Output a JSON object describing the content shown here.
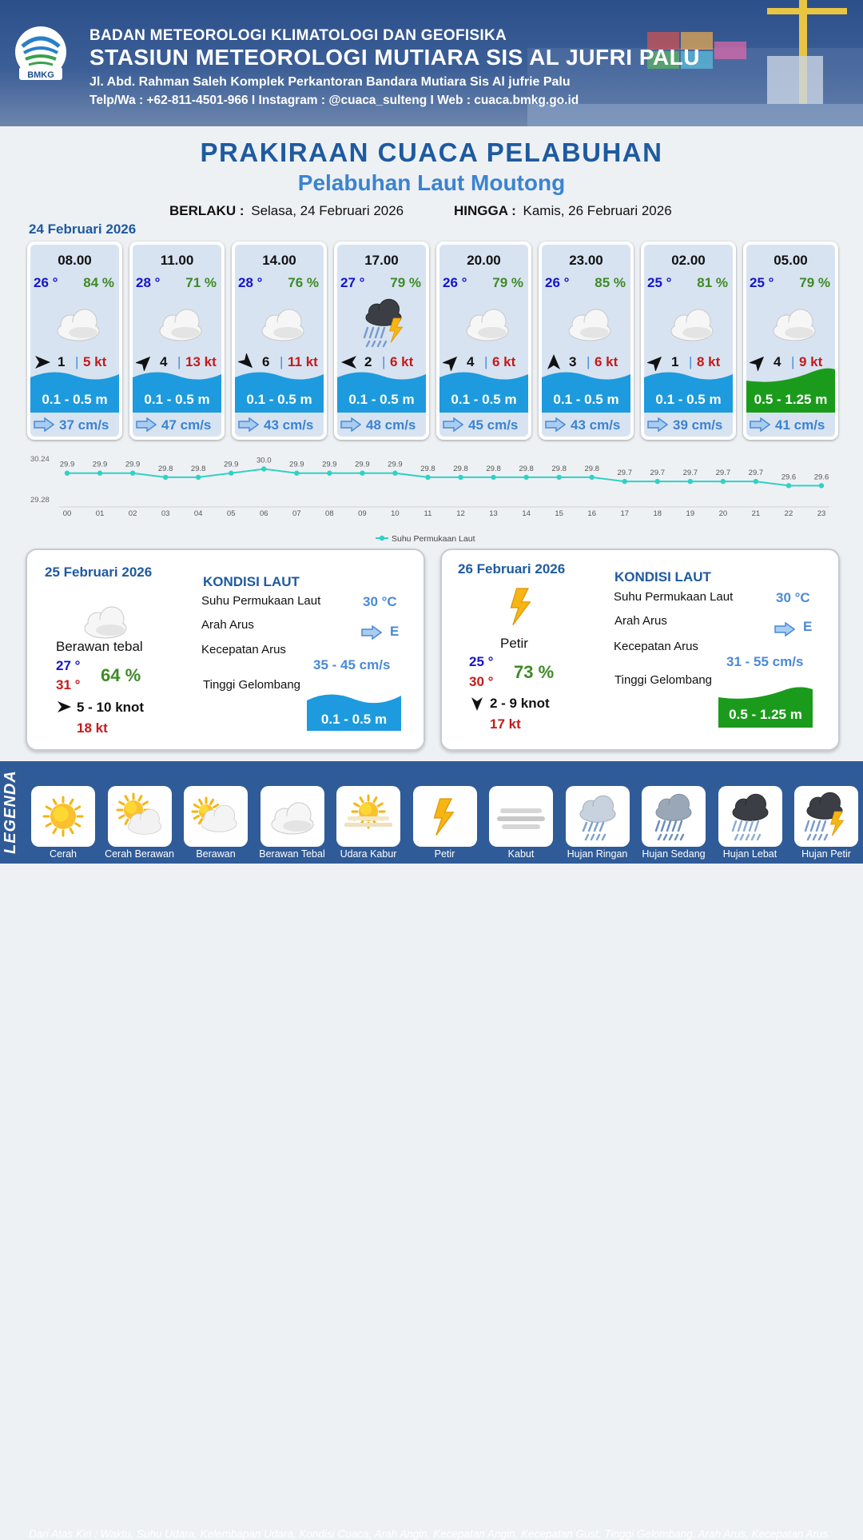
{
  "header": {
    "agency": "BADAN METEOROLOGI KLIMATOLOGI DAN GEOFISIKA",
    "station": "STASIUN METEOROLOGI MUTIARA SIS AL JUFRI PALU",
    "address": "Jl. Abd. Rahman Saleh Komplek Perkantoran Bandara Mutiara Sis Al jufrie Palu",
    "contact": "Telp/Wa : +62-811-4501-966  I  Instagram : @cuaca_sulteng  I  Web : cuaca.bmkg.go.id",
    "logo_text": "BMKG"
  },
  "title": "PRAKIRAAN CUACA PELABUHAN",
  "subtitle": "Pelabuhan Laut Moutong",
  "validity": {
    "from_label": "BERLAKU :",
    "from_value": "Selasa, 24 Februari 2026",
    "to_label": "HINGGA :",
    "to_value": "Kamis, 26 Februari 2026"
  },
  "day1": {
    "date": "24 Februari 2026",
    "slots": [
      {
        "time": "08.00",
        "temp": "26 °",
        "humidity": "84 %",
        "weather": "berawan-tebal",
        "wind_dir_deg": 90,
        "wind_speed": "1",
        "gust": "5 kt",
        "wave": "0.1 - 0.5 m",
        "wave_level": "low",
        "current_dir": "E",
        "current": "37 cm/s"
      },
      {
        "time": "11.00",
        "temp": "28 °",
        "humidity": "71 %",
        "weather": "berawan-tebal",
        "wind_dir_deg": 45,
        "wind_speed": "4",
        "gust": "13 kt",
        "wave": "0.1 - 0.5 m",
        "wave_level": "low",
        "current_dir": "E",
        "current": "47 cm/s"
      },
      {
        "time": "14.00",
        "temp": "28 °",
        "humidity": "76 %",
        "weather": "berawan-tebal",
        "wind_dir_deg": 135,
        "wind_speed": "6",
        "gust": "11 kt",
        "wave": "0.1 - 0.5 m",
        "wave_level": "low",
        "current_dir": "E",
        "current": "43 cm/s"
      },
      {
        "time": "17.00",
        "temp": "27 °",
        "humidity": "79 %",
        "weather": "hujan-petir",
        "wind_dir_deg": 270,
        "wind_speed": "2",
        "gust": "6 kt",
        "wave": "0.1 - 0.5 m",
        "wave_level": "low",
        "current_dir": "E",
        "current": "48 cm/s"
      },
      {
        "time": "20.00",
        "temp": "26 °",
        "humidity": "79 %",
        "weather": "berawan-tebal",
        "wind_dir_deg": 45,
        "wind_speed": "4",
        "gust": "6 kt",
        "wave": "0.1 - 0.5 m",
        "wave_level": "low",
        "current_dir": "E",
        "current": "45 cm/s"
      },
      {
        "time": "23.00",
        "temp": "26 °",
        "humidity": "85 %",
        "weather": "berawan-tebal",
        "wind_dir_deg": 0,
        "wind_speed": "3",
        "gust": "6 kt",
        "wave": "0.1 - 0.5 m",
        "wave_level": "low",
        "current_dir": "E",
        "current": "43 cm/s"
      },
      {
        "time": "02.00",
        "temp": "25 °",
        "humidity": "81 %",
        "weather": "berawan-tebal",
        "wind_dir_deg": 45,
        "wind_speed": "1",
        "gust": "8 kt",
        "wave": "0.1 - 0.5 m",
        "wave_level": "low",
        "current_dir": "E",
        "current": "39 cm/s"
      },
      {
        "time": "05.00",
        "temp": "25 °",
        "humidity": "79 %",
        "weather": "berawan-tebal",
        "wind_dir_deg": 45,
        "wind_speed": "4",
        "gust": "9 kt",
        "wave": "0.5 - 1.25 m",
        "wave_level": "moderate",
        "current_dir": "E",
        "current": "41 cm/s"
      }
    ]
  },
  "chart_data": {
    "type": "line",
    "title": "",
    "xlabel": "",
    "ylabel": "",
    "x": [
      "00",
      "01",
      "02",
      "03",
      "04",
      "05",
      "06",
      "07",
      "08",
      "09",
      "10",
      "11",
      "12",
      "13",
      "14",
      "15",
      "16",
      "17",
      "18",
      "19",
      "20",
      "21",
      "22",
      "23"
    ],
    "series": [
      {
        "name": "Suhu Permukaan Laut",
        "values": [
          29.9,
          29.9,
          29.9,
          29.8,
          29.8,
          29.9,
          30.0,
          29.9,
          29.9,
          29.9,
          29.9,
          29.8,
          29.8,
          29.8,
          29.8,
          29.8,
          29.8,
          29.7,
          29.7,
          29.7,
          29.7,
          29.7,
          29.6,
          29.6
        ],
        "color": "#2fd1c6"
      }
    ],
    "value_labels": [
      "29.9",
      "29.9",
      "29.9",
      "29.8",
      "29.8",
      "29.9",
      "30.0",
      "29.9",
      "29.9",
      "29.9",
      "29.9",
      "29.8",
      "29.8",
      "29.8",
      "29.8",
      "29.8",
      "29.8",
      "29.7",
      "29.7",
      "29.7",
      "29.7",
      "29.7",
      "29.6",
      "29.6"
    ],
    "ylim": [
      29.28,
      30.24
    ],
    "ytick_labels": [
      "30.24",
      "29.28"
    ],
    "grid": false,
    "legend": "bottom-center"
  },
  "day2": {
    "date": "25 Februari 2026",
    "weather": "berawan-tebal",
    "condition": "Berawan tebal",
    "temp_min": "27 °",
    "temp_max": "31 °",
    "humidity": "64 %",
    "wind_dir_deg": 90,
    "wind": "5  - 10 knot",
    "gust": "18 kt",
    "sea": {
      "heading": "KONDISI LAUT",
      "sst_label": "Suhu Permukaan Laut",
      "sst": "30 °C",
      "current_dir_label": "Arah Arus",
      "current_dir": "E",
      "current_speed_label": "Kecepatan Arus",
      "current_speed": "35 - 45 cm/s",
      "wave_label": "Tinggi Gelombang",
      "wave": "0.1 - 0.5 m",
      "wave_level": "low"
    }
  },
  "day3": {
    "date": "26 Februari 2026",
    "weather": "petir",
    "condition": "Petir",
    "temp_min": "25 °",
    "temp_max": "30 °",
    "humidity": "73 %",
    "wind_dir_deg": 180,
    "wind": "2  - 9 knot",
    "gust": "17 kt",
    "sea": {
      "heading": "KONDISI LAUT",
      "sst_label": "Suhu Permukaan Laut",
      "sst": "30 °C",
      "current_dir_label": "Arah Arus",
      "current_dir": "E",
      "current_speed_label": "Kecepatan Arus",
      "current_speed": "31 - 55 cm/s",
      "wave_label": "Tinggi Gelombang",
      "wave": "0.5 - 1.25 m",
      "wave_level": "moderate"
    }
  },
  "legend": {
    "title": "LEGENDA",
    "description": "Dari Atas Kiri : Waktu, Suhu Udara, Kelembapan Udara, Kondisi Cuaca, Arah Angin, Kecepatan Angin, Kecepatan Gust, Tinggi Gelombang, Arah Arus, Kecepatan Arus",
    "items": [
      {
        "label": "Cerah",
        "icon": "cerah"
      },
      {
        "label": "Cerah Berawan",
        "icon": "cerah-berawan"
      },
      {
        "label": "Berawan",
        "icon": "berawan"
      },
      {
        "label": "Berawan Tebal",
        "icon": "berawan-tebal"
      },
      {
        "label": "Udara Kabur",
        "icon": "udara-kabur"
      },
      {
        "label": "Petir",
        "icon": "petir"
      },
      {
        "label": "Kabut",
        "icon": "kabut"
      },
      {
        "label": "Hujan Ringan",
        "icon": "hujan-ringan"
      },
      {
        "label": "Hujan Sedang",
        "icon": "hujan-sedang"
      },
      {
        "label": "Hujan Lebat",
        "icon": "hujan-lebat"
      },
      {
        "label": "Hujan Petir",
        "icon": "hujan-petir"
      }
    ]
  },
  "colors": {
    "header_bg": "#2b4f8a",
    "title": "#1e5aa0",
    "subtitle": "#3b83d1",
    "temp": "#1515c9",
    "humidity": "#3f8a26",
    "gust": "#c41a1a",
    "wave_low": "#1d9bde",
    "wave_moderate": "#1b9b1b",
    "legend_bg": "#2f5b98"
  }
}
